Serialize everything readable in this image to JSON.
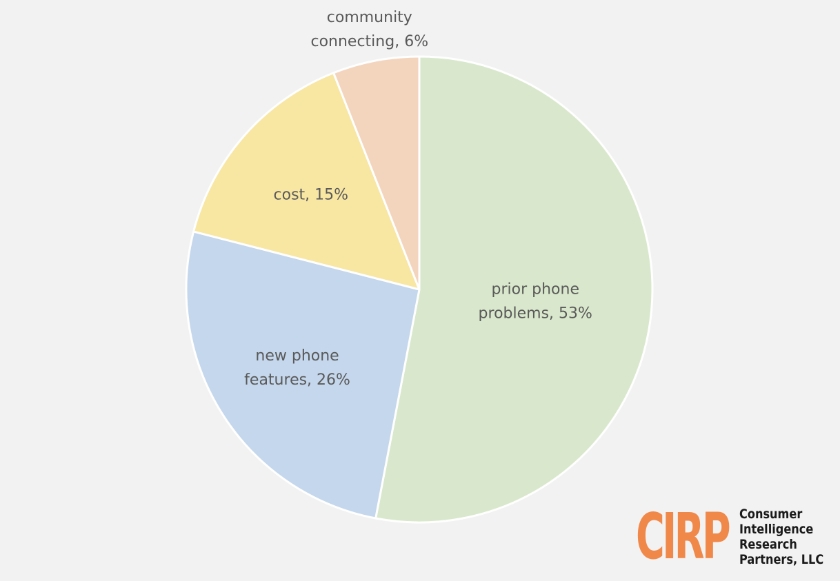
{
  "chart_data": {
    "type": "pie",
    "title": "",
    "slices": [
      {
        "label": "prior phone problems",
        "value": 53,
        "display": [
          "prior phone",
          "problems, 53%"
        ],
        "color": "#d9e8cc"
      },
      {
        "label": "new phone features",
        "value": 26,
        "display": [
          "new phone",
          "features, 26%"
        ],
        "color": "#c5d7ec"
      },
      {
        "label": "cost",
        "value": 15,
        "display": [
          "cost, 15%"
        ],
        "color": "#f8e6a3"
      },
      {
        "label": "community connecting",
        "value": 6,
        "display": [
          "community",
          "connecting, 6%"
        ],
        "color": "#f3d5bd"
      }
    ],
    "start": "12 o'clock",
    "direction": "clockwise",
    "legend": "none",
    "label_color": "#595959"
  },
  "logo": {
    "mark": "CIRP",
    "lines": [
      "Consumer",
      "Intelligence",
      "Research",
      "Partners, LLC"
    ],
    "mark_color": "#f0884a"
  }
}
